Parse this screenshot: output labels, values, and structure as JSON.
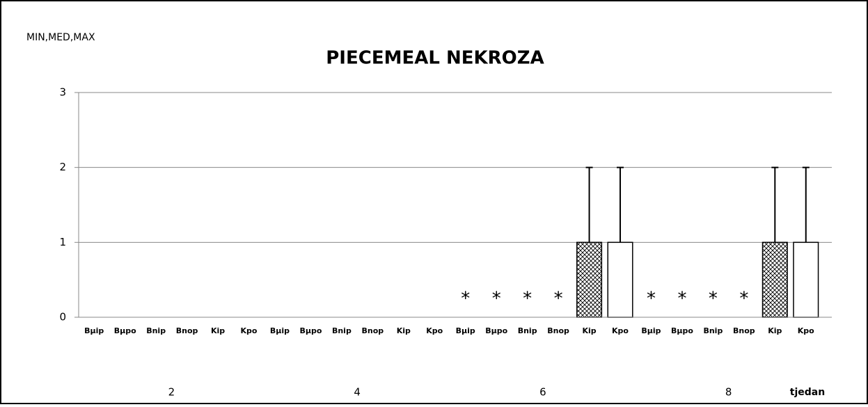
{
  "chart_data": {
    "type": "bar",
    "title": "PIECEMEAL NEKROZA",
    "ylabel": "MIN,MED,MAX",
    "xlabel": "tjedan",
    "groups": [
      "2",
      "4",
      "6",
      "8"
    ],
    "categories": [
      "Bμip",
      "Bμpo",
      "Bnip",
      "Bnop",
      "Kip",
      "Kpo",
      "Bμip",
      "Bμpo",
      "Bnip",
      "Bnop",
      "Kip",
      "Kpo",
      "Bμip",
      "Bμpo",
      "Bnip",
      "Bnop",
      "Kip",
      "Kpo",
      "Bμip",
      "Bμpo",
      "Bnip",
      "Bnop",
      "Kip",
      "Kpo"
    ],
    "values": [
      0,
      0,
      0,
      0,
      0,
      0,
      0,
      0,
      0,
      0,
      0,
      0,
      0,
      0,
      0,
      0,
      1,
      1,
      0,
      0,
      0,
      0,
      1,
      1
    ],
    "max": [
      0,
      0,
      0,
      0,
      0,
      0,
      0,
      0,
      0,
      0,
      0,
      0,
      0,
      0,
      0,
      0,
      2,
      2,
      0,
      0,
      0,
      0,
      2,
      2
    ],
    "annotations": [
      null,
      null,
      null,
      null,
      null,
      null,
      null,
      null,
      null,
      null,
      null,
      null,
      "*",
      "*",
      "*",
      "*",
      null,
      null,
      "*",
      "*",
      "*",
      "*",
      null,
      null
    ],
    "hatched_categories": [
      "Kip"
    ],
    "color": "#ffffff",
    "ylim": [
      0,
      3
    ],
    "yticks": [
      0,
      1,
      2,
      3
    ],
    "grid": true
  }
}
